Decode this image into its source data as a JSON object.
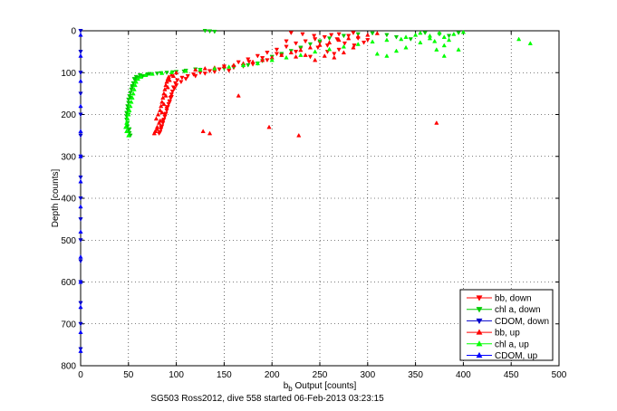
{
  "chart_data": {
    "type": "scatter",
    "title": "",
    "footer": "SG503 Ross2012, dive 558 started 06-Feb-2013 03:23:15",
    "xlabel_base": "b",
    "xlabel_sub": "b",
    "xlabel_rest": " Output [counts]",
    "ylabel": "Depth [counts]",
    "xlim": [
      0,
      500
    ],
    "ylim": [
      0,
      800
    ],
    "y_reversed": true,
    "grid": true,
    "legend_position": "bottom-right",
    "xticks": [
      "0",
      "50",
      "100",
      "150",
      "200",
      "250",
      "300",
      "350",
      "400",
      "450",
      "500"
    ],
    "yticks": [
      "0",
      "100",
      "200",
      "300",
      "400",
      "500",
      "600",
      "700",
      "800"
    ],
    "series": [
      {
        "name": "bb, down",
        "color": "#ff0000",
        "marker": "triangle-down",
        "points": [
          [
            145,
            92
          ],
          [
            150,
            85
          ],
          [
            165,
            75
          ],
          [
            175,
            68
          ],
          [
            185,
            60
          ],
          [
            195,
            52
          ],
          [
            205,
            45
          ],
          [
            215,
            38
          ],
          [
            225,
            30
          ],
          [
            235,
            25
          ],
          [
            245,
            20
          ],
          [
            255,
            15
          ],
          [
            262,
            10
          ],
          [
            270,
            8
          ],
          [
            280,
            12
          ],
          [
            290,
            18
          ],
          [
            300,
            22
          ],
          [
            248,
            40
          ],
          [
            258,
            50
          ],
          [
            270,
            45
          ],
          [
            265,
            55
          ],
          [
            240,
            62
          ],
          [
            250,
            28
          ],
          [
            230,
            42
          ],
          [
            210,
            58
          ],
          [
            195,
            70
          ],
          [
            180,
            80
          ],
          [
            170,
            85
          ],
          [
            155,
            95
          ],
          [
            160,
            88
          ],
          [
            140,
            98
          ],
          [
            130,
            102
          ],
          [
            120,
            108
          ],
          [
            110,
            115
          ],
          [
            105,
            122
          ],
          [
            100,
            130
          ],
          [
            98,
            138
          ],
          [
            96,
            145
          ],
          [
            95,
            152
          ],
          [
            94,
            160
          ],
          [
            93,
            168
          ],
          [
            92,
            175
          ],
          [
            91,
            182
          ],
          [
            90,
            190
          ],
          [
            89,
            198
          ],
          [
            88,
            205
          ],
          [
            87,
            212
          ],
          [
            86,
            220
          ],
          [
            85,
            228
          ],
          [
            84,
            235
          ],
          [
            83,
            242
          ],
          [
            97,
            135
          ],
          [
            99,
            125
          ],
          [
            101,
            118
          ],
          [
            95,
            158
          ],
          [
            93,
            170
          ],
          [
            90,
            185
          ],
          [
            88,
            200
          ],
          [
            86,
            215
          ],
          [
            84,
            230
          ],
          [
            82,
            245
          ],
          [
            106,
            112
          ],
          [
            112,
            108
          ],
          [
            118,
            104
          ],
          [
            125,
            100
          ],
          [
            135,
            96
          ],
          [
            220,
            5
          ],
          [
            232,
            8
          ],
          [
            244,
            12
          ],
          [
            276,
            30
          ],
          [
            286,
            35
          ],
          [
            296,
            28
          ],
          [
            268,
            20
          ],
          [
            258,
            35
          ],
          [
            225,
            50
          ],
          [
            205,
            55
          ],
          [
            190,
            65
          ],
          [
            176,
            74
          ],
          [
            215,
            25
          ],
          [
            285,
            5
          ]
        ]
      },
      {
        "name": "chl a, down",
        "color": "#00cc00",
        "marker": "triangle-down",
        "points": [
          [
            130,
            0
          ],
          [
            140,
            2
          ],
          [
            135,
            1
          ],
          [
            120,
            92
          ],
          [
            110,
            95
          ],
          [
            100,
            98
          ],
          [
            90,
            100
          ],
          [
            80,
            102
          ],
          [
            70,
            104
          ],
          [
            65,
            108
          ],
          [
            60,
            112
          ],
          [
            57,
            118
          ],
          [
            55,
            125
          ],
          [
            54,
            132
          ],
          [
            53,
            140
          ],
          [
            52,
            148
          ],
          [
            51,
            156
          ],
          [
            50,
            164
          ],
          [
            50,
            172
          ],
          [
            49,
            180
          ],
          [
            49,
            188
          ],
          [
            48,
            196
          ],
          [
            48,
            204
          ],
          [
            48,
            212
          ],
          [
            49,
            220
          ],
          [
            49,
            228
          ],
          [
            50,
            236
          ],
          [
            51,
            244
          ],
          [
            52,
            250
          ],
          [
            56,
            115
          ],
          [
            58,
            110
          ],
          [
            62,
            106
          ],
          [
            72,
            103
          ],
          [
            84,
            101
          ],
          [
            96,
            99
          ],
          [
            108,
            97
          ],
          [
            125,
            93
          ],
          [
            160,
            86
          ],
          [
            175,
            82
          ],
          [
            190,
            72
          ],
          [
            200,
            62
          ],
          [
            210,
            55
          ],
          [
            220,
            48
          ],
          [
            230,
            40
          ],
          [
            240,
            32
          ],
          [
            250,
            25
          ],
          [
            260,
            18
          ],
          [
            275,
            12
          ],
          [
            290,
            8
          ],
          [
            305,
            6
          ],
          [
            320,
            10
          ],
          [
            330,
            15
          ],
          [
            345,
            20
          ],
          [
            360,
            5
          ],
          [
            375,
            8
          ],
          [
            385,
            12
          ],
          [
            395,
            5
          ],
          [
            150,
            90
          ],
          [
            170,
            84
          ],
          [
            185,
            78
          ],
          [
            52,
            160
          ],
          [
            50,
            200
          ],
          [
            51,
            235
          ],
          [
            54,
            135
          ]
        ]
      },
      {
        "name": "CDOM, down",
        "color": "#0000cc",
        "marker": "triangle-down",
        "points": [
          [
            0,
            0
          ],
          [
            0,
            50
          ],
          [
            0,
            100
          ],
          [
            0,
            150
          ],
          [
            0,
            200
          ],
          [
            0,
            250
          ],
          [
            0,
            300
          ],
          [
            0,
            350
          ],
          [
            0,
            400
          ],
          [
            0,
            450
          ],
          [
            0,
            500
          ],
          [
            0,
            550
          ],
          [
            0,
            600
          ],
          [
            0,
            650
          ],
          [
            0,
            700
          ],
          [
            0,
            760
          ]
        ]
      },
      {
        "name": "bb, up",
        "color": "#ff0000",
        "marker": "triangle-up",
        "points": [
          [
            78,
            240
          ],
          [
            80,
            230
          ],
          [
            82,
            220
          ],
          [
            79,
            210
          ],
          [
            81,
            200
          ],
          [
            83,
            190
          ],
          [
            84,
            180
          ],
          [
            85,
            170
          ],
          [
            86,
            160
          ],
          [
            87,
            150
          ],
          [
            88,
            140
          ],
          [
            89,
            130
          ],
          [
            90,
            122
          ],
          [
            91,
            115
          ],
          [
            92,
            110
          ],
          [
            95,
            105
          ],
          [
            100,
            100
          ],
          [
            110,
            96
          ],
          [
            120,
            93
          ],
          [
            130,
            90
          ],
          [
            140,
            88
          ],
          [
            150,
            85
          ],
          [
            160,
            82
          ],
          [
            170,
            78
          ],
          [
            180,
            74
          ],
          [
            190,
            70
          ],
          [
            200,
            64
          ],
          [
            210,
            58
          ],
          [
            220,
            52
          ],
          [
            230,
            46
          ],
          [
            240,
            40
          ],
          [
            250,
            34
          ],
          [
            260,
            28
          ],
          [
            270,
            22
          ],
          [
            280,
            18
          ],
          [
            290,
            14
          ],
          [
            300,
            10
          ],
          [
            310,
            6
          ],
          [
            255,
            60
          ],
          [
            265,
            64
          ],
          [
            245,
            70
          ],
          [
            235,
            58
          ],
          [
            225,
            62
          ],
          [
            275,
            52
          ],
          [
            285,
            40
          ],
          [
            128,
            240
          ],
          [
            135,
            245
          ],
          [
            197,
            230
          ],
          [
            228,
            250
          ],
          [
            372,
            220
          ],
          [
            165,
            155
          ],
          [
            77,
            245
          ],
          [
            80,
            235
          ],
          [
            83,
            215
          ],
          [
            85,
            195
          ],
          [
            87,
            175
          ],
          [
            89,
            155
          ],
          [
            91,
            135
          ],
          [
            93,
            118
          ],
          [
            97,
            108
          ]
        ]
      },
      {
        "name": "chl a, up",
        "color": "#00ff00",
        "marker": "triangle-up",
        "points": [
          [
            50,
            250
          ],
          [
            48,
            240
          ],
          [
            47,
            230
          ],
          [
            48,
            220
          ],
          [
            49,
            210
          ],
          [
            50,
            200
          ],
          [
            51,
            190
          ],
          [
            52,
            180
          ],
          [
            53,
            170
          ],
          [
            54,
            160
          ],
          [
            55,
            150
          ],
          [
            56,
            140
          ],
          [
            57,
            130
          ],
          [
            58,
            122
          ],
          [
            60,
            115
          ],
          [
            63,
            110
          ],
          [
            68,
            106
          ],
          [
            75,
            103
          ],
          [
            85,
            101
          ],
          [
            95,
            99
          ],
          [
            110,
            96
          ],
          [
            125,
            93
          ],
          [
            140,
            90
          ],
          [
            155,
            86
          ],
          [
            170,
            82
          ],
          [
            185,
            78
          ],
          [
            200,
            70
          ],
          [
            215,
            64
          ],
          [
            230,
            58
          ],
          [
            245,
            50
          ],
          [
            260,
            44
          ],
          [
            275,
            38
          ],
          [
            290,
            32
          ],
          [
            305,
            26
          ],
          [
            320,
            22
          ],
          [
            335,
            20
          ],
          [
            340,
            15
          ],
          [
            350,
            10
          ],
          [
            355,
            5
          ],
          [
            365,
            18
          ],
          [
            370,
            25
          ],
          [
            380,
            15
          ],
          [
            390,
            8
          ],
          [
            400,
            3
          ],
          [
            380,
            35
          ],
          [
            372,
            45
          ],
          [
            310,
            55
          ],
          [
            320,
            60
          ],
          [
            330,
            48
          ],
          [
            458,
            20
          ],
          [
            470,
            30
          ],
          [
            395,
            45
          ],
          [
            380,
            60
          ],
          [
            340,
            40
          ],
          [
            355,
            28
          ],
          [
            365,
            12
          ],
          [
            375,
            5
          ],
          [
            385,
            22
          ]
        ]
      },
      {
        "name": "CDOM, up",
        "color": "#0000ff",
        "marker": "triangle-up",
        "points": [
          [
            0,
            10
          ],
          [
            0,
            60
          ],
          [
            0,
            120
          ],
          [
            0,
            180
          ],
          [
            0,
            240
          ],
          [
            0,
            300
          ],
          [
            0,
            360
          ],
          [
            0,
            420
          ],
          [
            0,
            480
          ],
          [
            0,
            540
          ],
          [
            0,
            600
          ],
          [
            0,
            660
          ],
          [
            0,
            720
          ],
          [
            0,
            765
          ]
        ]
      }
    ]
  }
}
